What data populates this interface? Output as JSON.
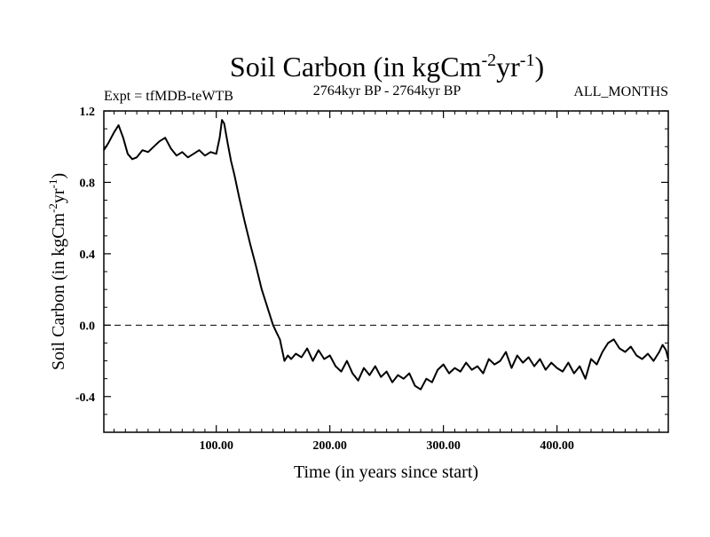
{
  "chart_data": {
    "type": "line",
    "title": {
      "main": "Soil Carbon (in kgCm",
      "exp1": "-2",
      "mid": "yr",
      "exp2": "-1",
      "close": ")"
    },
    "subtitle_left": "Expt = tfMDB-teWTB",
    "subtitle_center": "2764kyr BP - 2764kyr BP",
    "subtitle_right": "ALL_MONTHS",
    "xlabel": "Time (in years since start)",
    "ylabel": {
      "main": "Soil Carbon (in kgCm",
      "exp1": "-2",
      "mid": "yr",
      "exp2": "-1",
      "close": ")"
    },
    "xlim": [
      1,
      498
    ],
    "ylim": [
      -0.6,
      1.2
    ],
    "x_ticks": [
      {
        "value": 100,
        "label": "100.00"
      },
      {
        "value": 200,
        "label": "200.00"
      },
      {
        "value": 300,
        "label": "300.00"
      },
      {
        "value": 400,
        "label": "400.00"
      }
    ],
    "y_ticks": [
      {
        "value": 1.2,
        "label": "1.2"
      },
      {
        "value": 0.8,
        "label": "0.8"
      },
      {
        "value": 0.4,
        "label": "0.4"
      },
      {
        "value": 0.0,
        "label": "0.0"
      },
      {
        "value": -0.4,
        "label": "-0.4"
      }
    ],
    "reference_line": {
      "y": 0.0,
      "style": "dashed"
    },
    "series": [
      {
        "name": "Soil Carbon",
        "color": "#000000",
        "x": [
          1,
          5,
          10,
          14,
          18,
          22,
          26,
          30,
          35,
          40,
          45,
          50,
          55,
          60,
          65,
          70,
          75,
          80,
          85,
          90,
          95,
          100,
          103,
          105,
          107,
          110,
          113,
          116,
          120,
          125,
          130,
          135,
          140,
          145,
          150,
          153,
          156,
          160,
          163,
          166,
          170,
          175,
          180,
          185,
          190,
          195,
          200,
          205,
          210,
          215,
          220,
          225,
          230,
          235,
          240,
          245,
          250,
          255,
          260,
          265,
          270,
          275,
          280,
          285,
          290,
          295,
          300,
          305,
          310,
          315,
          320,
          325,
          330,
          335,
          340,
          345,
          350,
          355,
          360,
          365,
          370,
          375,
          380,
          385,
          390,
          395,
          400,
          405,
          410,
          415,
          420,
          425,
          430,
          435,
          440,
          445,
          450,
          455,
          460,
          465,
          470,
          475,
          480,
          485,
          490,
          493,
          496,
          498
        ],
        "values": [
          0.98,
          1.02,
          1.08,
          1.12,
          1.05,
          0.96,
          0.93,
          0.94,
          0.98,
          0.97,
          1.0,
          1.03,
          1.05,
          0.99,
          0.95,
          0.97,
          0.94,
          0.96,
          0.98,
          0.95,
          0.97,
          0.96,
          1.05,
          1.15,
          1.13,
          1.02,
          0.92,
          0.84,
          0.72,
          0.58,
          0.45,
          0.33,
          0.2,
          0.1,
          0.0,
          -0.04,
          -0.08,
          -0.2,
          -0.17,
          -0.19,
          -0.16,
          -0.18,
          -0.13,
          -0.2,
          -0.14,
          -0.19,
          -0.17,
          -0.23,
          -0.26,
          -0.2,
          -0.27,
          -0.31,
          -0.24,
          -0.28,
          -0.23,
          -0.29,
          -0.26,
          -0.32,
          -0.28,
          -0.3,
          -0.27,
          -0.34,
          -0.36,
          -0.3,
          -0.32,
          -0.25,
          -0.22,
          -0.27,
          -0.24,
          -0.26,
          -0.21,
          -0.25,
          -0.23,
          -0.27,
          -0.19,
          -0.22,
          -0.2,
          -0.15,
          -0.24,
          -0.17,
          -0.21,
          -0.18,
          -0.23,
          -0.19,
          -0.25,
          -0.21,
          -0.24,
          -0.26,
          -0.21,
          -0.27,
          -0.23,
          -0.3,
          -0.19,
          -0.22,
          -0.15,
          -0.1,
          -0.08,
          -0.13,
          -0.15,
          -0.12,
          -0.17,
          -0.19,
          -0.16,
          -0.2,
          -0.15,
          -0.11,
          -0.14,
          -0.19
        ]
      }
    ]
  }
}
